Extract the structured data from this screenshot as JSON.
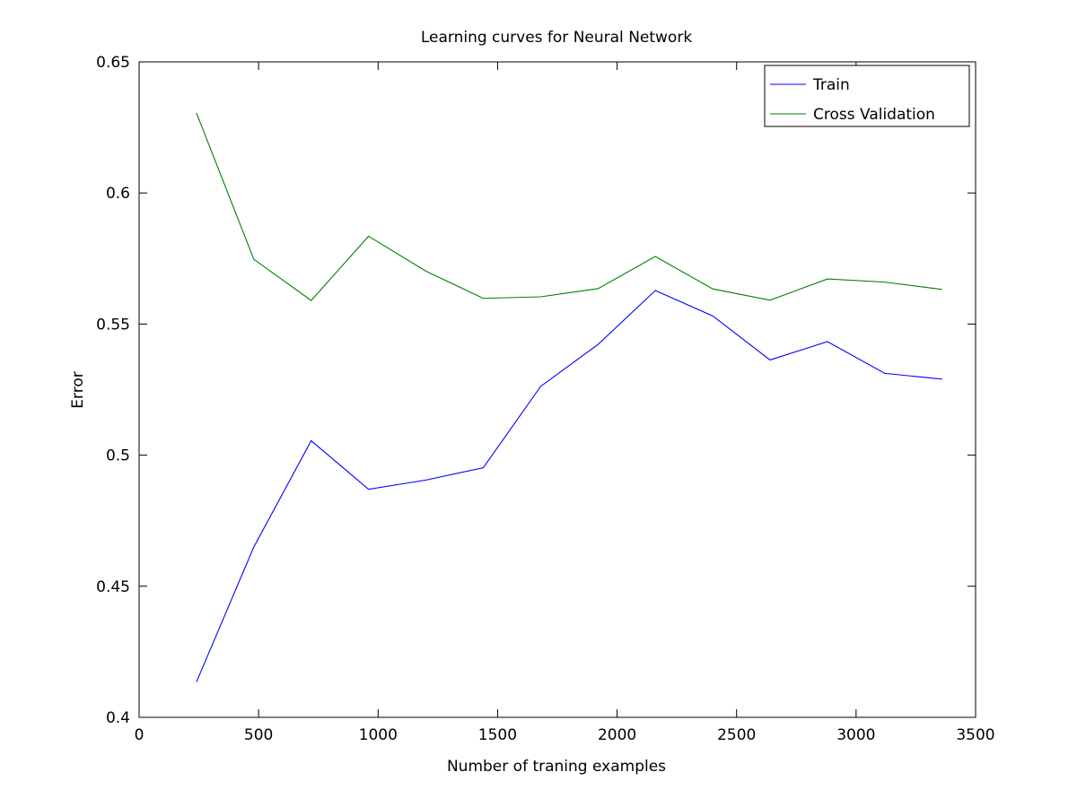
{
  "chart_data": {
    "type": "line",
    "title": "Learning curves for Neural Network",
    "xlabel": "Number of traning examples",
    "ylabel": "Error",
    "xlim": [
      0,
      3500
    ],
    "ylim": [
      0.4,
      0.65
    ],
    "xticks": [
      0,
      500,
      1000,
      1500,
      2000,
      2500,
      3000,
      3500
    ],
    "xtick_labels": [
      "0",
      "500",
      "1000",
      "1500",
      "2000",
      "2500",
      "3000",
      "3500"
    ],
    "yticks": [
      0.4,
      0.45,
      0.5,
      0.55,
      0.6,
      0.65
    ],
    "ytick_labels": [
      "0.4",
      "0.45",
      "0.5",
      "0.55",
      "0.6",
      "0.65"
    ],
    "grid": false,
    "legend_position": "top-right",
    "x": [
      240,
      480,
      720,
      960,
      1200,
      1440,
      1680,
      1920,
      2160,
      2400,
      2640,
      2880,
      3120,
      3360
    ],
    "series": [
      {
        "name": "Train",
        "color": "#0000ff",
        "values": [
          0.4135,
          0.465,
          0.5055,
          0.487,
          0.4905,
          0.4952,
          0.5262,
          0.5422,
          0.5628,
          0.5531,
          0.5363,
          0.5433,
          0.5312,
          0.529
        ]
      },
      {
        "name": "Cross Validation",
        "color": "#008000",
        "values": [
          0.6305,
          0.5747,
          0.559,
          0.5835,
          0.5702,
          0.5598,
          0.5604,
          0.5635,
          0.5758,
          0.5634,
          0.5591,
          0.5672,
          0.566,
          0.5632
        ]
      }
    ]
  }
}
